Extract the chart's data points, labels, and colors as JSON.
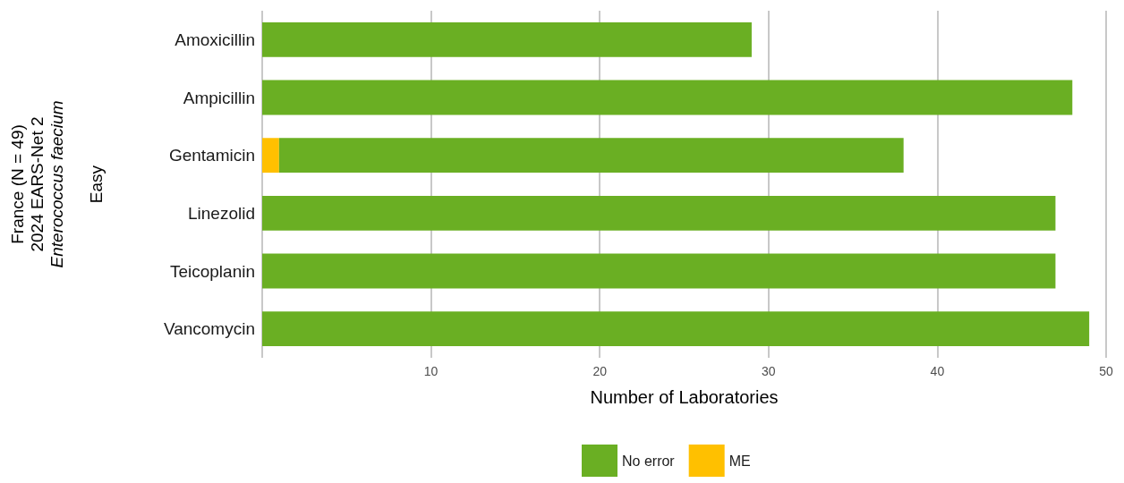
{
  "chart_data": {
    "type": "bar",
    "orientation": "horizontal",
    "stacked": true,
    "xlabel": "Number of Laboratories",
    "ylabel": "France (N = 49)\n2024 EARS-Net 2\nEnterococcus faecium\n\nEasy",
    "categories": [
      "Amoxicillin",
      "Ampicillin",
      "Gentamicin",
      "Linezolid",
      "Teicoplanin",
      "Vancomycin"
    ],
    "series": [
      {
        "name": "ME",
        "color": "#ffc000",
        "values": [
          null,
          null,
          1,
          null,
          null,
          null
        ]
      },
      {
        "name": "No error",
        "color": "#6aaf23",
        "values": [
          29,
          48,
          37,
          47,
          47,
          49
        ]
      }
    ],
    "xlim": [
      0,
      50
    ],
    "xticks": [
      {
        "value": 0,
        "label": null
      },
      10,
      20,
      30,
      40,
      50
    ],
    "grid": "x",
    "legend": "bottom"
  }
}
